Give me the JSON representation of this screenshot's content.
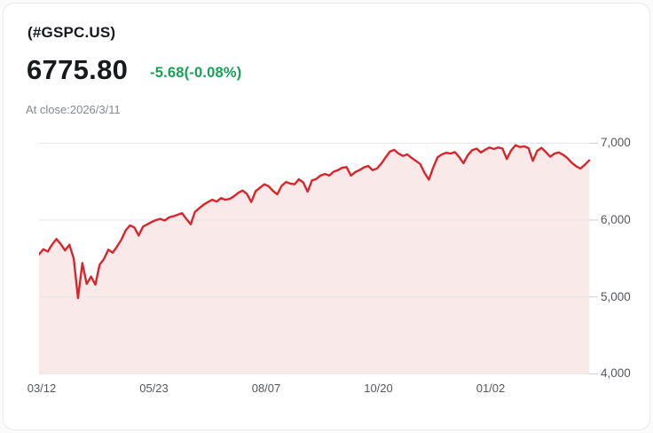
{
  "card": {
    "symbol": "(#GSPC.US)",
    "price": "6775.80",
    "change": "-5.68(-0.08%)",
    "as_of": "At close:2026/3/11"
  },
  "colors": {
    "line_red": "#d9252b",
    "area_fill": "#fae9e9",
    "change_green": "#17a157",
    "gridline": "#e5e5e7",
    "tick_overhang": "#cfcfd2",
    "axis_text": "#55585c"
  },
  "chart_data": {
    "type": "line",
    "style": "area-fill",
    "x_ticks": [
      "03/12",
      "05/23",
      "08/07",
      "10/20",
      "01/02"
    ],
    "y_tick_labels": [
      "7,000",
      "6,000",
      "5,000",
      "4,000"
    ],
    "y_tick_values": [
      7000,
      6000,
      5000,
      4000
    ],
    "ylim": [
      4000,
      7120
    ],
    "grid": true,
    "legend": "none",
    "last_value": 6775.8,
    "series": [
      {
        "name": "#GSPC.US",
        "values": [
          5555,
          5620,
          5590,
          5680,
          5755,
          5690,
          5605,
          5680,
          5500,
          4985,
          5440,
          5170,
          5265,
          5160,
          5420,
          5495,
          5615,
          5575,
          5655,
          5745,
          5865,
          5930,
          5905,
          5800,
          5915,
          5945,
          5975,
          6000,
          6015,
          5995,
          6035,
          6050,
          6070,
          6090,
          6015,
          5945,
          6105,
          6155,
          6200,
          6235,
          6265,
          6240,
          6285,
          6265,
          6275,
          6310,
          6355,
          6385,
          6340,
          6235,
          6375,
          6420,
          6465,
          6440,
          6380,
          6335,
          6445,
          6495,
          6475,
          6465,
          6530,
          6490,
          6370,
          6515,
          6535,
          6580,
          6600,
          6580,
          6630,
          6650,
          6680,
          6690,
          6580,
          6625,
          6650,
          6685,
          6705,
          6650,
          6670,
          6735,
          6815,
          6890,
          6915,
          6865,
          6835,
          6855,
          6810,
          6770,
          6730,
          6615,
          6525,
          6685,
          6815,
          6855,
          6875,
          6865,
          6885,
          6820,
          6740,
          6845,
          6910,
          6930,
          6880,
          6915,
          6945,
          6925,
          6945,
          6930,
          6795,
          6905,
          6975,
          6950,
          6960,
          6935,
          6770,
          6900,
          6940,
          6885,
          6825,
          6865,
          6880,
          6850,
          6805,
          6745,
          6700,
          6670,
          6720,
          6776
        ]
      }
    ]
  }
}
